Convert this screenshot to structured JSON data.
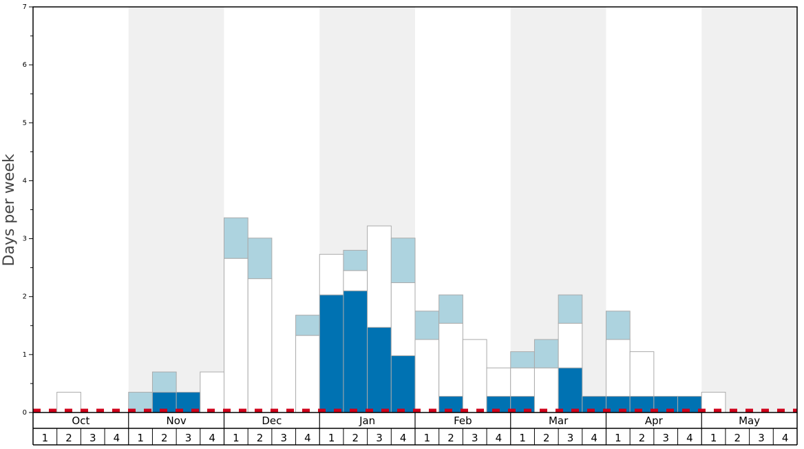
{
  "chart_data": {
    "type": "bar",
    "stacked": true,
    "ylabel": "Days per week",
    "ylim": [
      0,
      7
    ],
    "y_ticks": [
      "0",
      "1",
      "2",
      "3",
      "4",
      "5",
      "6",
      "7"
    ],
    "months": [
      "Oct",
      "Nov",
      "Dec",
      "Jan",
      "Feb",
      "Mar",
      "Apr",
      "May"
    ],
    "week_labels": [
      "1",
      "2",
      "3",
      "4"
    ],
    "series": [
      {
        "color": "#0072b2",
        "values": [
          0,
          0,
          0,
          0,
          0,
          0.35,
          0.35,
          0,
          0,
          0,
          0,
          0,
          2.03,
          2.1,
          1.47,
          0.98,
          0,
          0.28,
          0,
          0.28,
          0.28,
          0,
          0.77,
          0.28,
          0.28,
          0.28,
          0.28,
          0.28,
          0,
          0,
          0,
          0
        ]
      },
      {
        "color": "#ffffff",
        "values": [
          0,
          0.35,
          0,
          0,
          0,
          0,
          0,
          0.7,
          2.66,
          2.31,
          0,
          1.33,
          0.7,
          0.35,
          1.75,
          1.26,
          1.26,
          1.26,
          1.26,
          0.49,
          0.49,
          0.77,
          0.77,
          0,
          0.98,
          0.77,
          0,
          0,
          0.35,
          0,
          0,
          0
        ]
      },
      {
        "color": "#add3df",
        "values": [
          0,
          0,
          0,
          0,
          0.35,
          0.35,
          0,
          0,
          0.7,
          0.7,
          0,
          0.35,
          0,
          0.35,
          0,
          0.77,
          0.49,
          0.49,
          0,
          0,
          0.28,
          0.49,
          0.49,
          0,
          0.49,
          0,
          0,
          0,
          0,
          0,
          0,
          0
        ]
      }
    ],
    "reference_line": {
      "y": 0.0,
      "color": "#d0021b",
      "style": "dashed"
    },
    "colors": {
      "band_shade": "#f0f0f0",
      "bar_outline": "#aaaaaa",
      "axis": "#000000"
    },
    "grid": false,
    "legend": "none"
  }
}
